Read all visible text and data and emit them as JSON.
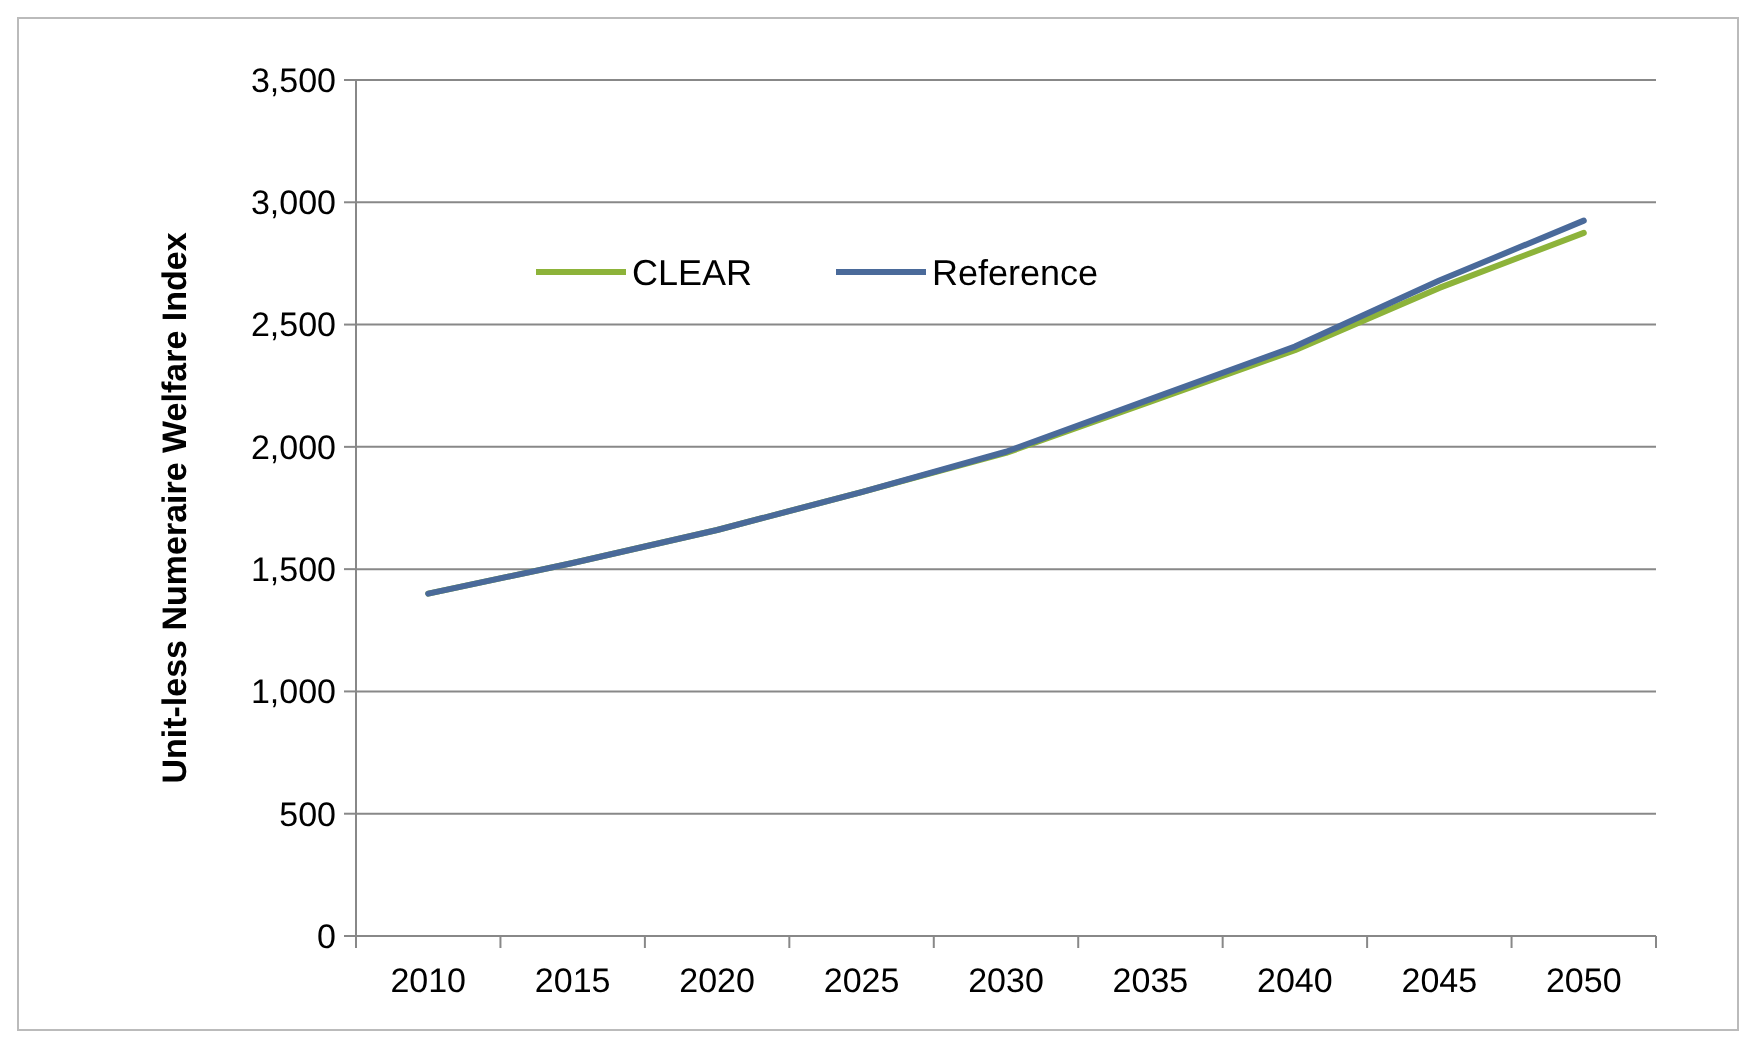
{
  "chart_data": {
    "type": "line",
    "ylabel": "Unit-less Numeraire Welfare Index",
    "categories": [
      "2010",
      "2015",
      "2020",
      "2025",
      "2030",
      "2035",
      "2040",
      "2045",
      "2050"
    ],
    "series": [
      {
        "name": "CLEAR",
        "color": "#8db33a",
        "values": [
          1400,
          1525,
          1660,
          1815,
          1975,
          2185,
          2395,
          2650,
          2875
        ]
      },
      {
        "name": "Reference",
        "color": "#4a6a9a",
        "values": [
          1400,
          1525,
          1660,
          1815,
          1980,
          2195,
          2410,
          2680,
          2925
        ]
      }
    ],
    "ylim": [
      0,
      3500
    ],
    "yticks": [
      {
        "value": 0,
        "label": "0"
      },
      {
        "value": 500,
        "label": "500"
      },
      {
        "value": 1000,
        "label": "1,000"
      },
      {
        "value": 1500,
        "label": "1,500"
      },
      {
        "value": 2000,
        "label": "2,000"
      },
      {
        "value": 2500,
        "label": "2,500"
      },
      {
        "value": 3000,
        "label": "3,000"
      },
      {
        "value": 3500,
        "label": "3,500"
      }
    ],
    "grid": "y",
    "legend": "top left",
    "line_style": "solid",
    "marker": "none"
  }
}
